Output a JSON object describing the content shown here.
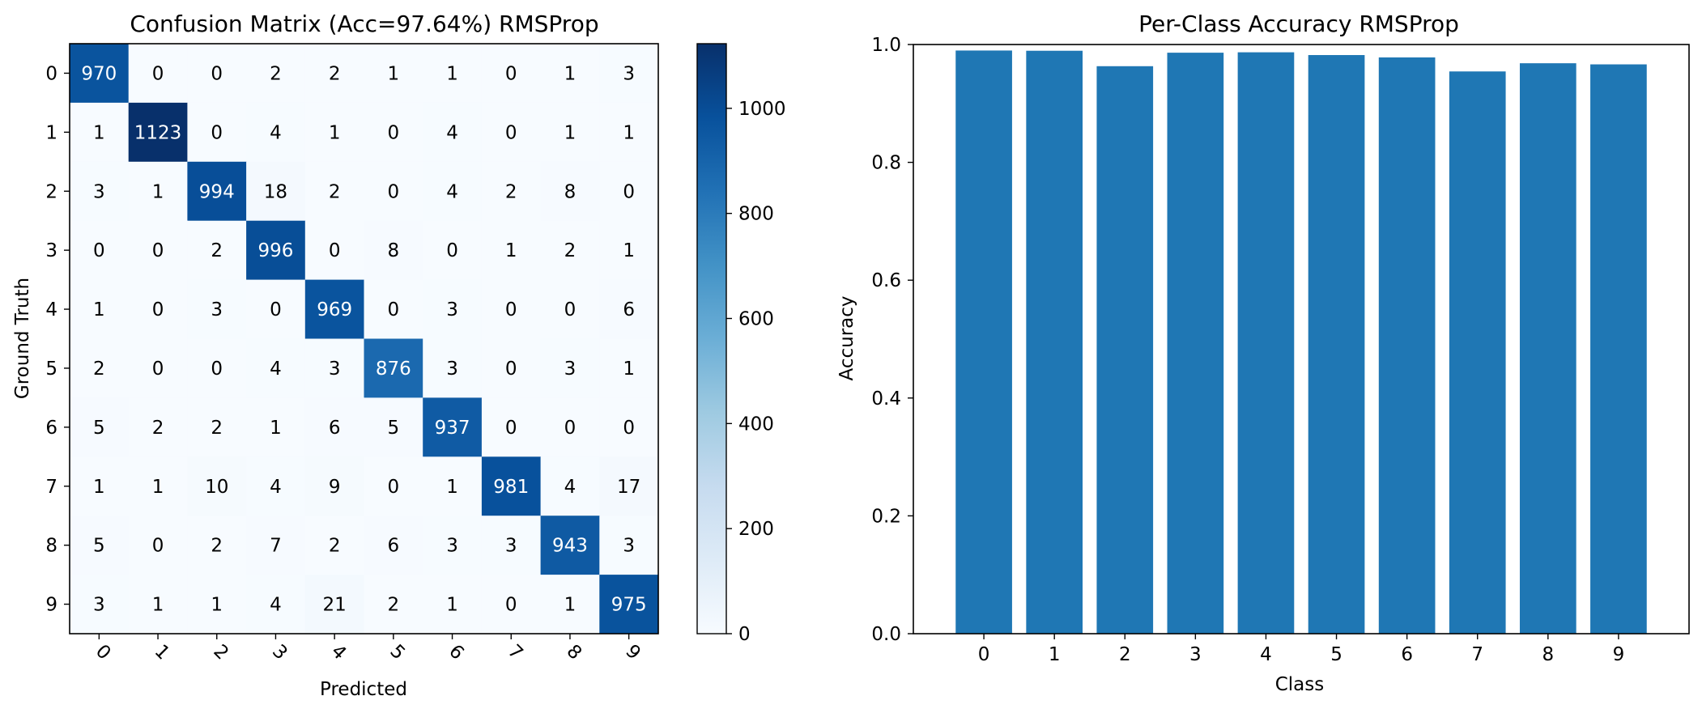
{
  "chart_data": [
    {
      "type": "heatmap",
      "title": "Confusion Matrix (Acc=97.64%) RMSProp",
      "xlabel": "Predicted",
      "ylabel": "Ground Truth",
      "x_ticks": [
        "0",
        "1",
        "2",
        "3",
        "4",
        "5",
        "6",
        "7",
        "8",
        "9"
      ],
      "y_ticks": [
        "0",
        "1",
        "2",
        "3",
        "4",
        "5",
        "6",
        "7",
        "8",
        "9"
      ],
      "matrix": [
        [
          970,
          0,
          0,
          2,
          2,
          1,
          1,
          0,
          1,
          3
        ],
        [
          1,
          1123,
          0,
          4,
          1,
          0,
          4,
          0,
          1,
          1
        ],
        [
          3,
          1,
          994,
          18,
          2,
          0,
          4,
          2,
          8,
          0
        ],
        [
          0,
          0,
          2,
          996,
          0,
          8,
          0,
          1,
          2,
          1
        ],
        [
          1,
          0,
          3,
          0,
          969,
          0,
          3,
          0,
          0,
          6
        ],
        [
          2,
          0,
          0,
          4,
          3,
          876,
          3,
          0,
          3,
          1
        ],
        [
          5,
          2,
          2,
          1,
          6,
          5,
          937,
          0,
          0,
          0
        ],
        [
          1,
          1,
          10,
          4,
          9,
          0,
          1,
          981,
          4,
          17
        ],
        [
          5,
          0,
          2,
          7,
          2,
          6,
          3,
          3,
          943,
          3
        ],
        [
          3,
          1,
          1,
          4,
          21,
          2,
          1,
          0,
          1,
          975
        ]
      ],
      "colorbar": {
        "min": 0,
        "max": 1123,
        "ticks": [
          "0",
          "200",
          "400",
          "600",
          "800",
          "1000"
        ],
        "colormap": "Blues"
      },
      "colors": {
        "low": "#f7fbff",
        "high": "#08306b",
        "dark_text": "#000000",
        "light_text": "#ffffff"
      }
    },
    {
      "type": "bar",
      "title": "Per-Class Accuracy RMSProp",
      "xlabel": "Class",
      "ylabel": "Accuracy",
      "categories": [
        "0",
        "1",
        "2",
        "3",
        "4",
        "5",
        "6",
        "7",
        "8",
        "9"
      ],
      "values": [
        0.9898,
        0.9894,
        0.9632,
        0.9861,
        0.9868,
        0.9821,
        0.9781,
        0.9543,
        0.9682,
        0.9663
      ],
      "ylim": [
        0,
        1.0
      ],
      "y_ticks": [
        "0.0",
        "0.2",
        "0.4",
        "0.6",
        "0.8",
        "1.0"
      ],
      "bar_color": "#1f77b4",
      "grid": false
    }
  ]
}
